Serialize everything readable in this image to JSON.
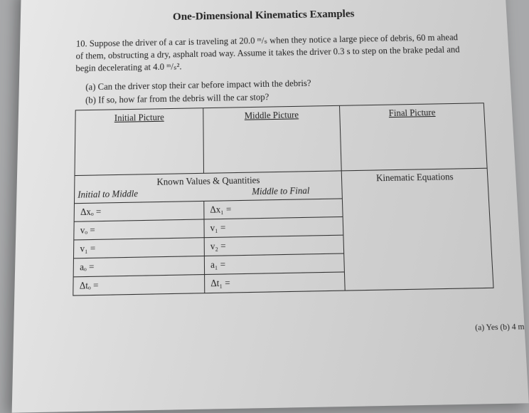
{
  "title": "One-Dimensional Kinematics Examples",
  "problem": {
    "number": "10.",
    "text": "Suppose the driver of a car is traveling at 20.0 ᵐ/ₛ when they notice a large piece of debris, 60 m ahead of them, obstructing a dry, asphalt road way. Assume it takes the driver 0.3 s to step on the brake pedal and begin decelerating at 4.0 ᵐ/ₛ².",
    "part_a": "(a) Can the driver stop their car before impact with the debris?",
    "part_b": "(b) If so, how far from the debris will the car stop?"
  },
  "pictures": {
    "initial": "Initial Picture",
    "middle": "Middle Picture",
    "final": "Final Picture"
  },
  "known_header": "Known Values & Quantities",
  "known_cols": {
    "left": "Initial to Middle",
    "right": "Middle to Final"
  },
  "kin_header": "Kinematic Equations",
  "vars": {
    "dx0": "Δxₒ =",
    "v0": "vₒ =",
    "v1a": "v₁ =",
    "a0": "aₒ =",
    "dt0": "Δtₒ =",
    "dx1": "Δx₁ =",
    "v1b": "v₁ =",
    "v2": "v₂ =",
    "a1": "a₁ =",
    "dt1": "Δt₁ ="
  },
  "answer": "(a) Yes (b) 4 m"
}
